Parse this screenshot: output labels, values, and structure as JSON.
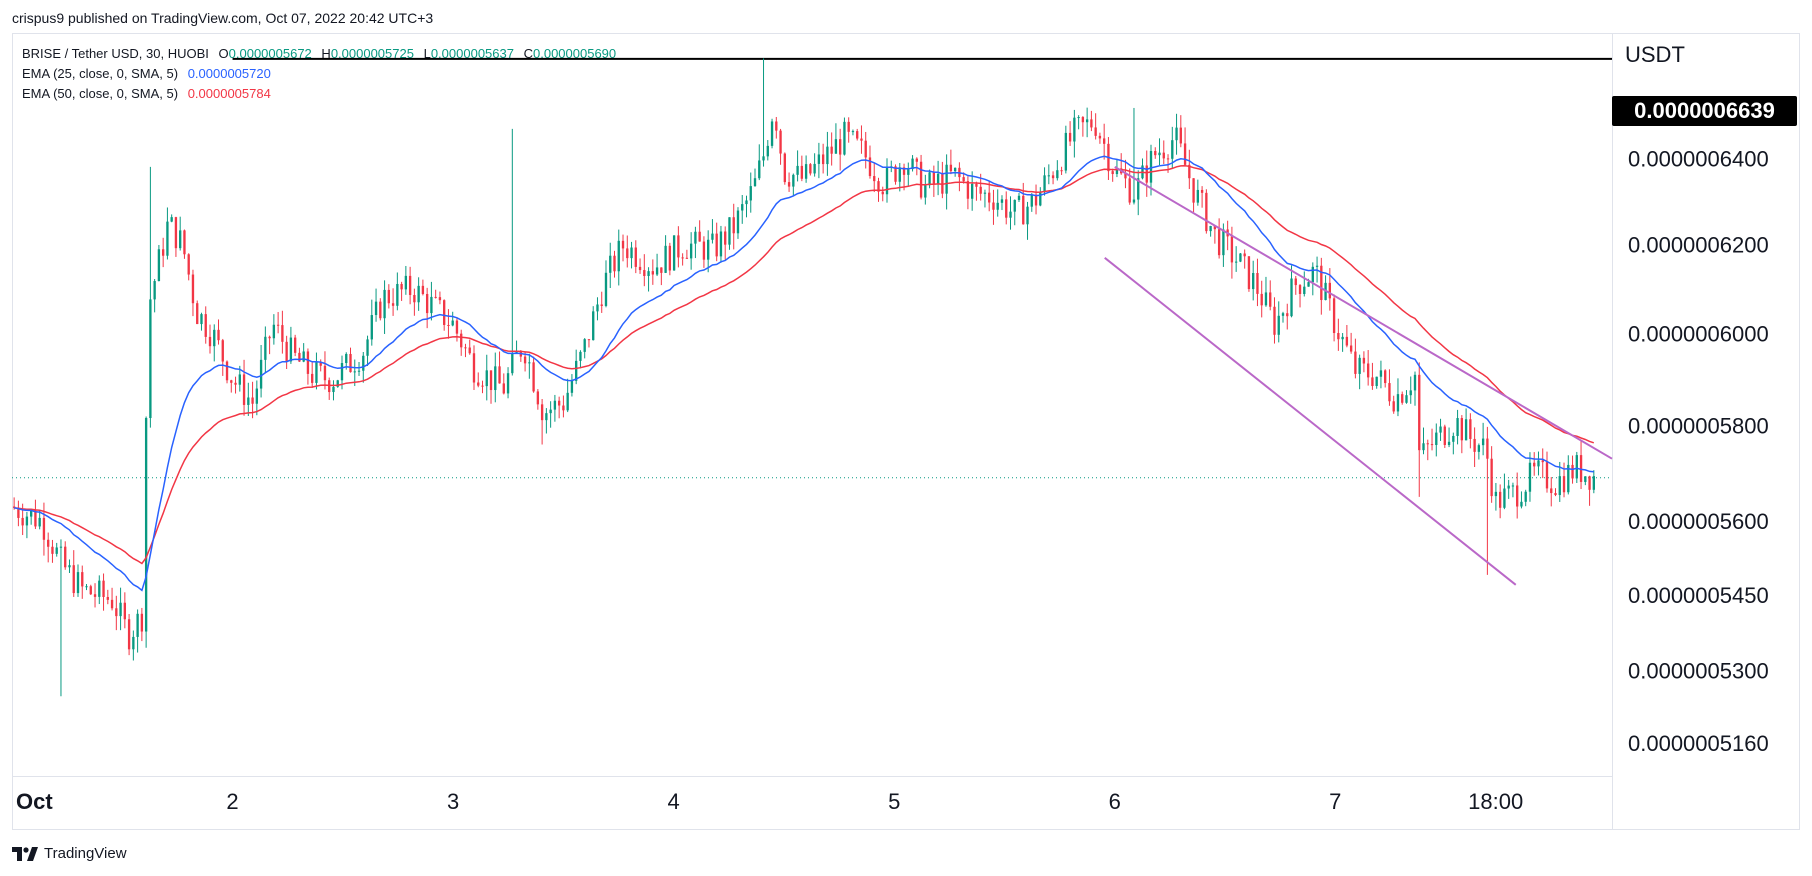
{
  "header": {
    "published": "crispus9 published on TradingView.com, Oct 07, 2022 20:42 UTC+3"
  },
  "legend": {
    "symbol": "BRISE / Tether USD, 30, HUOBI",
    "ohlc": {
      "o_label": "O",
      "o": "0.0000005672",
      "h_label": "H",
      "h": "0.0000005725",
      "l_label": "L",
      "l": "0.0000005637",
      "c_label": "C",
      "c": "0.0000005690"
    },
    "ema25": {
      "label": "EMA (25, close, 0, SMA, 5)",
      "value": "0.0000005720"
    },
    "ema50": {
      "label": "EMA (50, close, 0, SMA, 5)",
      "value": "0.0000005784"
    }
  },
  "axis": {
    "unit": "USDT",
    "price_tag": "0.0000006639"
  },
  "brand": {
    "name": "TradingView"
  },
  "colors": {
    "up": "#089981",
    "down": "#f23645",
    "ema25": "#2962ff",
    "ema50": "#f23645",
    "channel": "#ba68c8",
    "hline": "#000000",
    "last_price_line": "#089981"
  },
  "chart_data": {
    "type": "candlestick",
    "interval": "30m",
    "x_axis": {
      "ticks": [
        {
          "label": "Oct",
          "x": 0.8
        },
        {
          "label": "2",
          "x": 1.9
        },
        {
          "label": "3",
          "x": 3.0
        },
        {
          "label": "4",
          "x": 4.1
        },
        {
          "label": "5",
          "x": 5.2
        },
        {
          "label": "6",
          "x": 6.3
        },
        {
          "label": "7",
          "x": 7.4
        },
        {
          "label": "18:00",
          "x": 8.2
        }
      ],
      "range": [
        0.8,
        8.78
      ]
    },
    "y_axis": {
      "ticks": [
        {
          "label": "0.0000006400",
          "value": 6.4e-07
        },
        {
          "label": "0.0000006200",
          "value": 6.2e-07
        },
        {
          "label": "0.0000006000",
          "value": 6e-07
        },
        {
          "label": "0.0000005800",
          "value": 5.8e-07
        },
        {
          "label": "0.0000005600",
          "value": 5.6e-07
        },
        {
          "label": "0.0000005450",
          "value": 5.45e-07
        },
        {
          "label": "0.0000005300",
          "value": 5.3e-07
        },
        {
          "label": "0.0000005160",
          "value": 5.16e-07
        }
      ],
      "scale": "log",
      "range": [
        5.1e-07,
        6.7e-07
      ]
    },
    "horizontal_line": {
      "value": 6.639e-07,
      "x_start": 1.9
    },
    "last_price": 5.69e-07,
    "price_path": [
      [
        0.8,
        5.63e-07
      ],
      [
        0.95,
        5.6e-07
      ],
      [
        1.05,
        5.51e-07
      ],
      [
        1.15,
        5.46e-07
      ],
      [
        1.3,
        5.44e-07
      ],
      [
        1.38,
        5.37e-07
      ],
      [
        1.45,
        5.41e-07
      ],
      [
        1.48,
        6.06e-07
      ],
      [
        1.58,
        6.25e-07
      ],
      [
        1.65,
        6.2e-07
      ],
      [
        1.72,
        6.05e-07
      ],
      [
        1.8,
        6e-07
      ],
      [
        1.9,
        5.9e-07
      ],
      [
        2.0,
        5.85e-07
      ],
      [
        2.1,
        6.02e-07
      ],
      [
        2.2,
        5.95e-07
      ],
      [
        2.3,
        5.91e-07
      ],
      [
        2.4,
        5.9e-07
      ],
      [
        2.55,
        5.96e-07
      ],
      [
        2.65,
        6.08e-07
      ],
      [
        2.8,
        6.1e-07
      ],
      [
        2.9,
        6.06e-07
      ],
      [
        3.0,
        6.02e-07
      ],
      [
        3.1,
        5.93e-07
      ],
      [
        3.25,
        5.88e-07
      ],
      [
        3.35,
        5.98e-07
      ],
      [
        3.45,
        5.83e-07
      ],
      [
        3.55,
        5.85e-07
      ],
      [
        3.65,
        5.96e-07
      ],
      [
        3.75,
        6.11e-07
      ],
      [
        3.85,
        6.2e-07
      ],
      [
        4.0,
        6.15e-07
      ],
      [
        4.15,
        6.2e-07
      ],
      [
        4.3,
        6.19e-07
      ],
      [
        4.4,
        6.24e-07
      ],
      [
        4.5,
        6.33e-07
      ],
      [
        4.55,
        6.41e-07
      ],
      [
        4.6,
        6.53e-07
      ],
      [
        4.65,
        6.37e-07
      ],
      [
        4.75,
        6.35e-07
      ],
      [
        4.85,
        6.4e-07
      ],
      [
        4.95,
        6.45e-07
      ],
      [
        5.05,
        6.41e-07
      ],
      [
        5.15,
        6.34e-07
      ],
      [
        5.25,
        6.4e-07
      ],
      [
        5.35,
        6.33e-07
      ],
      [
        5.5,
        6.36e-07
      ],
      [
        5.6,
        6.32e-07
      ],
      [
        5.7,
        6.31e-07
      ],
      [
        5.8,
        6.27e-07
      ],
      [
        5.9,
        6.3e-07
      ],
      [
        6.0,
        6.38e-07
      ],
      [
        6.1,
        6.46e-07
      ],
      [
        6.2,
        6.49e-07
      ],
      [
        6.3,
        6.37e-07
      ],
      [
        6.4,
        6.32e-07
      ],
      [
        6.5,
        6.41e-07
      ],
      [
        6.6,
        6.45e-07
      ],
      [
        6.7,
        6.32e-07
      ],
      [
        6.8,
        6.22e-07
      ],
      [
        6.9,
        6.17e-07
      ],
      [
        7.0,
        6.11e-07
      ],
      [
        7.1,
        6.02e-07
      ],
      [
        7.2,
        6.11e-07
      ],
      [
        7.3,
        6.14e-07
      ],
      [
        7.4,
        6.02e-07
      ],
      [
        7.5,
        5.92e-07
      ],
      [
        7.6,
        5.91e-07
      ],
      [
        7.7,
        5.86e-07
      ],
      [
        7.8,
        5.91e-07
      ],
      [
        7.82,
        5.73e-07
      ],
      [
        7.9,
        5.77e-07
      ],
      [
        8.0,
        5.81e-07
      ],
      [
        8.08,
        5.77e-07
      ],
      [
        8.15,
        5.75e-07
      ],
      [
        8.2,
        5.64e-07
      ],
      [
        8.3,
        5.66e-07
      ],
      [
        8.4,
        5.7e-07
      ],
      [
        8.5,
        5.68e-07
      ],
      [
        8.6,
        5.71e-07
      ],
      [
        8.7,
        5.69e-07
      ]
    ],
    "spikes": [
      {
        "x": 1.48,
        "value": 6.38e-07
      },
      {
        "x": 1.05,
        "value": 5.25e-07
      },
      {
        "x": 3.3,
        "value": 6.47e-07
      },
      {
        "x": 4.55,
        "value": 6.64e-07
      },
      {
        "x": 6.4,
        "value": 6.52e-07
      },
      {
        "x": 8.15,
        "value": 5.49e-07
      },
      {
        "x": 3.45,
        "value": 5.76e-07
      },
      {
        "x": 7.82,
        "value": 5.65e-07
      }
    ],
    "channel_lines": [
      {
        "points": [
          [
            6.3,
            6.38e-07
          ],
          [
            8.78,
            5.73e-07
          ]
        ]
      },
      {
        "points": [
          [
            6.25,
            6.17e-07
          ],
          [
            8.3,
            5.47e-07
          ]
        ]
      }
    ]
  }
}
